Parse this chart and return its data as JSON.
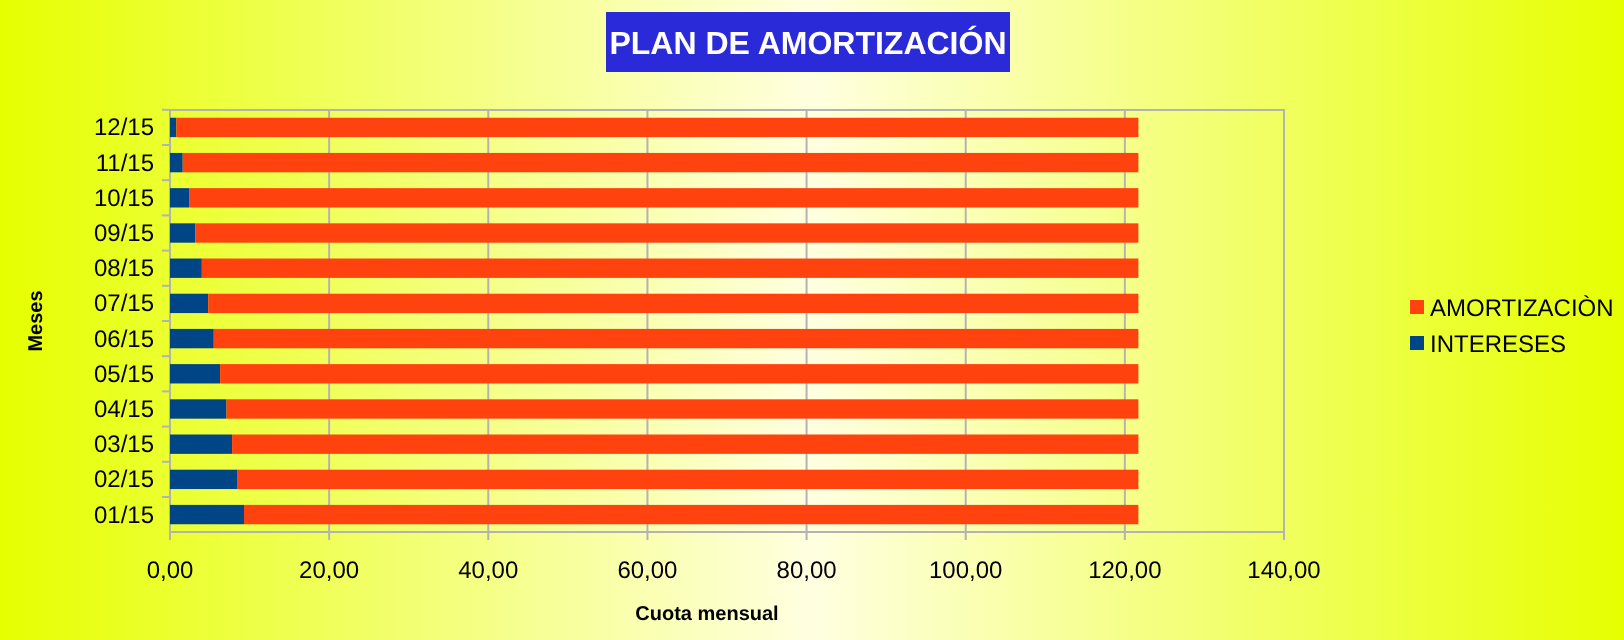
{
  "chart_data": {
    "type": "bar",
    "orientation": "horizontal",
    "stacked": true,
    "title": "PLAN DE AMORTIZACIÓN",
    "xlabel": "Cuota mensual",
    "ylabel": "Meses",
    "categories": [
      "12/15",
      "11/15",
      "10/15",
      "09/15",
      "08/15",
      "07/15",
      "06/15",
      "05/15",
      "04/15",
      "03/15",
      "02/15",
      "01/15"
    ],
    "series": [
      {
        "name": "INTERESES",
        "color": "#004586",
        "values": [
          0.8,
          1.6,
          2.4,
          3.2,
          4.0,
          4.8,
          5.5,
          6.3,
          7.1,
          7.8,
          8.5,
          9.3
        ]
      },
      {
        "name": "AMORTIZACIÒN",
        "color": "#ff420e",
        "values": [
          120.9,
          120.1,
          119.3,
          118.5,
          117.7,
          116.9,
          116.2,
          115.4,
          114.6,
          113.9,
          113.2,
          112.4
        ]
      }
    ],
    "xlim": [
      0,
      140
    ],
    "xticks": [
      {
        "value": 0,
        "label": "0,00"
      },
      {
        "value": 20,
        "label": "20,00"
      },
      {
        "value": 40,
        "label": "40,00"
      },
      {
        "value": 60,
        "label": "60,00"
      },
      {
        "value": 80,
        "label": "80,00"
      },
      {
        "value": 100,
        "label": "100,00"
      },
      {
        "value": 120,
        "label": "120,00"
      },
      {
        "value": 140,
        "label": "140,00"
      }
    ],
    "grid": "x",
    "legend": "right"
  }
}
